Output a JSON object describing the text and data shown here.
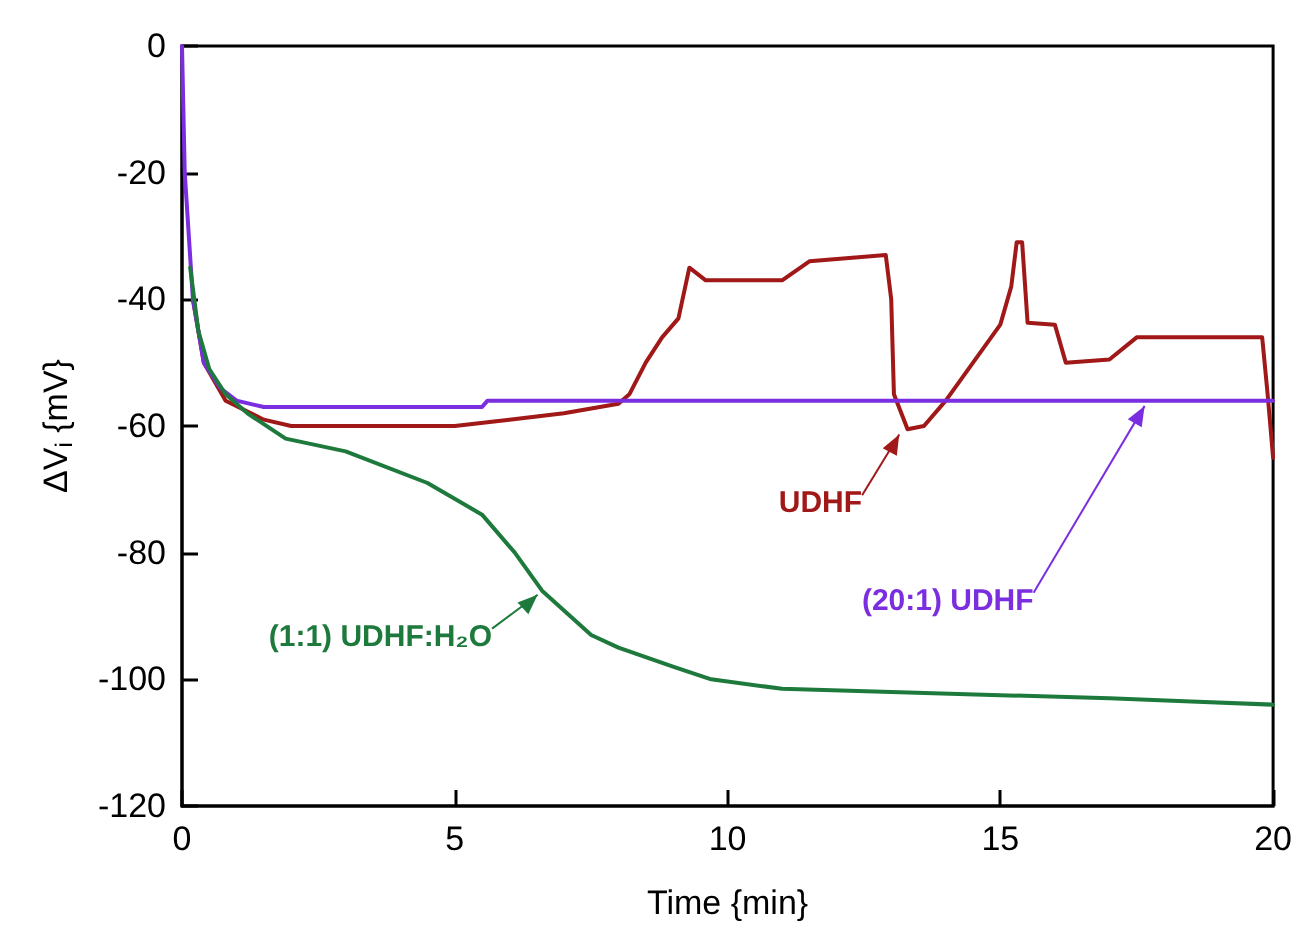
{
  "chart_data": {
    "type": "line",
    "xlabel": "Time {min}",
    "ylabel": "ΔV$_{i}$ {mV}",
    "xlim": [
      0,
      20
    ],
    "ylim": [
      -120,
      0
    ],
    "xticks": [
      0,
      5,
      10,
      15,
      20
    ],
    "yticks": [
      -120,
      -100,
      -80,
      -60,
      -40,
      -20,
      0
    ],
    "grid": false,
    "marker": "none",
    "line_style": "solid",
    "series": [
      {
        "color": "#a01818",
        "x": [
          0.2,
          0.4,
          0.8,
          1.5,
          2,
          5,
          6,
          7,
          8,
          8.2,
          8.5,
          8.8,
          9.1,
          9.3,
          9.6,
          11,
          11.5,
          12.9,
          13,
          13.05,
          13.3,
          13.6,
          14,
          14.5,
          15,
          15.2,
          15.3,
          15.4,
          15.5,
          16,
          16.2,
          17,
          17.5,
          18,
          19.8,
          19.9,
          20
        ],
        "values": [
          -40,
          -50,
          -56,
          -59,
          -60,
          -60,
          -59,
          -58,
          -56.5,
          -55,
          -50,
          -46,
          -43,
          -35,
          -37,
          -37,
          -34,
          -33,
          -40,
          -55,
          -60.5,
          -60,
          -56,
          -50,
          -44,
          -38,
          -31,
          -31,
          -43.7,
          -44,
          -50,
          -49.5,
          -46,
          -46,
          -46,
          -55,
          -65
        ]
      },
      {
        "color": "#7b2ee0",
        "x": [
          0,
          0.05,
          0.2,
          0.4,
          0.7,
          1,
          1.5,
          5.5,
          5.6,
          20
        ],
        "values": [
          0,
          -20,
          -40,
          -50,
          -54,
          -56,
          -57,
          -57,
          -56,
          -56
        ]
      },
      {
        "color": "#1e7a3c",
        "x": [
          0.15,
          0.3,
          0.5,
          0.8,
          1.2,
          1.9,
          3,
          4.5,
          5.5,
          6.1,
          6.6,
          7.5,
          8,
          8.5,
          9,
          9.7,
          11,
          13,
          15,
          17,
          18.5,
          20
        ],
        "values": [
          -35,
          -45,
          -51,
          -55,
          -58,
          -62,
          -64,
          -69,
          -74,
          -80,
          -86,
          -93,
          -95,
          -96.5,
          -98,
          -100,
          -101.5,
          -102,
          -102.5,
          -103,
          -103.5,
          -104
        ]
      }
    ],
    "annotations": [
      {
        "text": "UDHF",
        "x": 13.2,
        "y": -60.5
      },
      {
        "text": "(20:1) UDHF",
        "x": 17.7,
        "y": -56
      },
      {
        "text": "(1:1) UDHF:H₂O",
        "x": 6.6,
        "y": -86
      }
    ]
  }
}
